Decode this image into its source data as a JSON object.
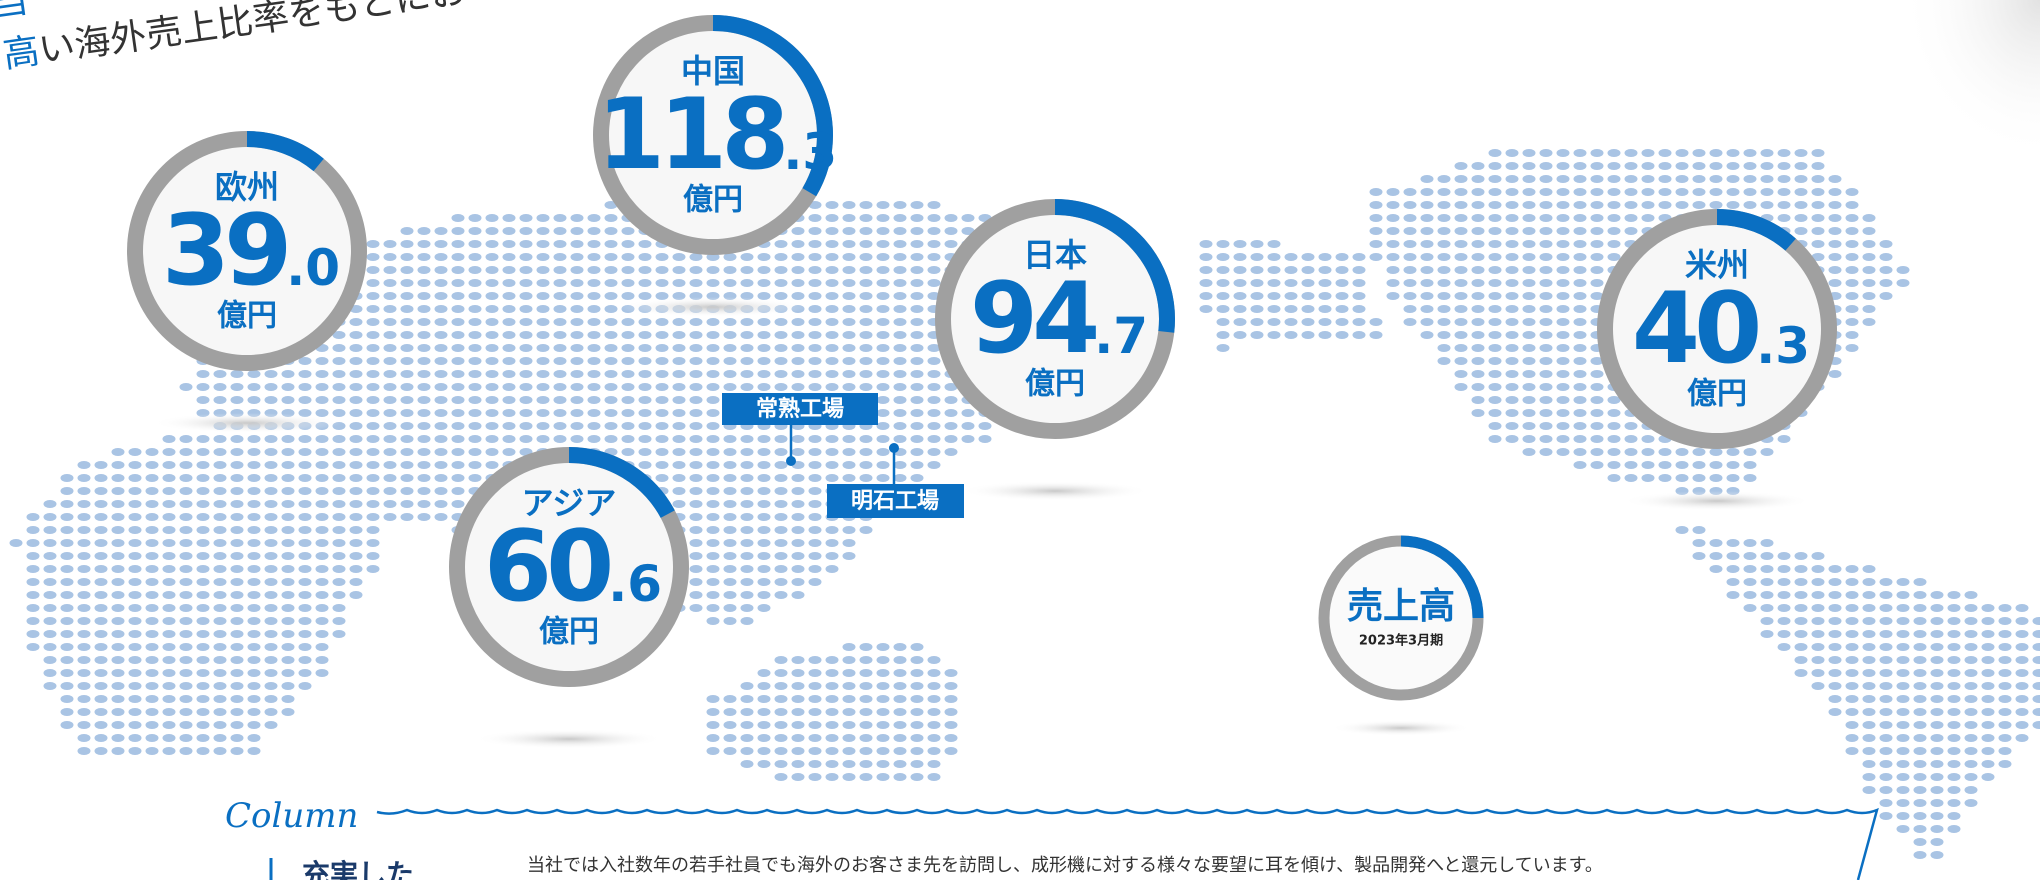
{
  "header": {
    "line1_lead": "当",
    "line2_lead": "高",
    "line2_rest": "い海外売上比率をもとにお"
  },
  "regions": [
    {
      "name": "欧州",
      "value": 39.0,
      "value_int": "39",
      "value_dec": ".0",
      "unit": "億円"
    },
    {
      "name": "中国",
      "value": 118.3,
      "value_int": "118",
      "value_dec": ".3",
      "unit": "億円"
    },
    {
      "name": "日本",
      "value": 94.7,
      "value_int": "94",
      "value_dec": ".7",
      "unit": "億円"
    },
    {
      "name": "米州",
      "value": 40.3,
      "value_int": "40",
      "value_dec": ".3",
      "unit": "億円"
    },
    {
      "name": "アジア",
      "value": 60.6,
      "value_int": "60",
      "value_dec": ".6",
      "unit": "億円"
    }
  ],
  "legend": {
    "title": "売上高",
    "period": "2023年3月期"
  },
  "factories": [
    "常熟工場",
    "明石工場"
  ],
  "column": {
    "label": "Column",
    "heading": "充実した",
    "text": "当社では入社数年の若手社員でも海外のお客さま先を訪問し、成形機に対する様々な要望に耳を傾け、製品開発へと還元しています。"
  }
}
